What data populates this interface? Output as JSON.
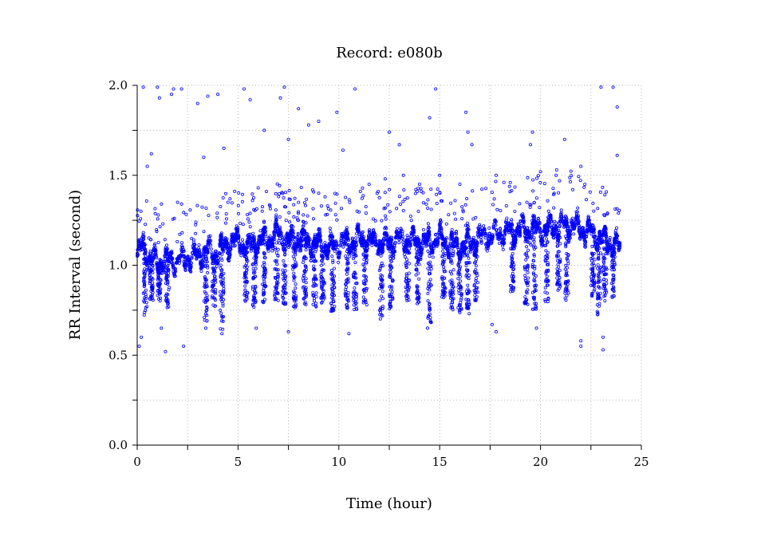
{
  "chart_data": {
    "type": "scatter",
    "title": "Record:  e080b",
    "xlabel": "Time (hour)",
    "ylabel": "RR Interval (second)",
    "xlim": [
      0,
      25
    ],
    "ylim": [
      0.0,
      2.0
    ],
    "x_ticks": [
      0,
      5,
      10,
      15,
      20,
      25
    ],
    "x_tick_labels": [
      "0",
      "5",
      "10",
      "15",
      "20",
      "25"
    ],
    "y_ticks": [
      0.0,
      0.5,
      1.0,
      1.5,
      2.0
    ],
    "y_tick_labels": [
      "0.0",
      "0.5",
      "1.0",
      "1.5",
      "2.0"
    ],
    "grid": true,
    "series": [
      {
        "color": "#0000ff",
        "marker": "open-circle",
        "baseline": [
          [
            0.0,
            1.05
          ],
          [
            0.3,
            1.12
          ],
          [
            0.6,
            1.03
          ],
          [
            1.0,
            1.02
          ],
          [
            1.5,
            1.03
          ],
          [
            2.0,
            1.02
          ],
          [
            2.5,
            1.04
          ],
          [
            3.0,
            1.05
          ],
          [
            3.5,
            1.08
          ],
          [
            4.0,
            1.06
          ],
          [
            4.5,
            1.12
          ],
          [
            5.0,
            1.13
          ],
          [
            5.5,
            1.1
          ],
          [
            6.0,
            1.13
          ],
          [
            6.5,
            1.15
          ],
          [
            7.0,
            1.17
          ],
          [
            7.5,
            1.13
          ],
          [
            8.0,
            1.15
          ],
          [
            8.5,
            1.13
          ],
          [
            9.0,
            1.12
          ],
          [
            9.5,
            1.1
          ],
          [
            10.0,
            1.12
          ],
          [
            10.5,
            1.13
          ],
          [
            11.0,
            1.14
          ],
          [
            11.5,
            1.13
          ],
          [
            12.0,
            1.12
          ],
          [
            12.5,
            1.13
          ],
          [
            13.0,
            1.14
          ],
          [
            13.5,
            1.14
          ],
          [
            14.0,
            1.13
          ],
          [
            14.5,
            1.13
          ],
          [
            15.0,
            1.15
          ],
          [
            15.5,
            1.12
          ],
          [
            16.0,
            1.1
          ],
          [
            16.5,
            1.12
          ],
          [
            17.0,
            1.15
          ],
          [
            17.5,
            1.17
          ],
          [
            18.0,
            1.18
          ],
          [
            18.5,
            1.19
          ],
          [
            19.0,
            1.2
          ],
          [
            19.5,
            1.2
          ],
          [
            20.0,
            1.2
          ],
          [
            20.5,
            1.21
          ],
          [
            21.0,
            1.22
          ],
          [
            21.5,
            1.23
          ],
          [
            22.0,
            1.2
          ],
          [
            22.5,
            1.18
          ],
          [
            23.0,
            1.15
          ],
          [
            23.5,
            1.12
          ],
          [
            23.9,
            1.1
          ]
        ],
        "dips": [
          [
            0.4,
            0.72
          ],
          [
            0.7,
            0.8
          ],
          [
            1.1,
            0.8
          ],
          [
            1.5,
            0.76
          ],
          [
            3.4,
            0.68
          ],
          [
            3.8,
            0.77
          ],
          [
            4.2,
            0.63
          ],
          [
            5.4,
            0.8
          ],
          [
            5.8,
            0.75
          ],
          [
            6.3,
            0.78
          ],
          [
            6.9,
            0.8
          ],
          [
            7.3,
            0.78
          ],
          [
            7.8,
            0.76
          ],
          [
            8.3,
            0.78
          ],
          [
            8.8,
            0.76
          ],
          [
            9.2,
            0.79
          ],
          [
            9.7,
            0.74
          ],
          [
            10.4,
            0.76
          ],
          [
            10.8,
            0.75
          ],
          [
            11.3,
            0.78
          ],
          [
            12.1,
            0.7
          ],
          [
            12.6,
            0.75
          ],
          [
            13.4,
            0.8
          ],
          [
            13.9,
            0.78
          ],
          [
            14.5,
            0.68
          ],
          [
            15.2,
            0.82
          ],
          [
            15.6,
            0.75
          ],
          [
            16.0,
            0.73
          ],
          [
            16.4,
            0.72
          ],
          [
            16.8,
            0.8
          ],
          [
            18.6,
            0.85
          ],
          [
            19.3,
            0.76
          ],
          [
            19.7,
            0.72
          ],
          [
            20.3,
            0.76
          ],
          [
            20.9,
            0.85
          ],
          [
            21.3,
            0.8
          ],
          [
            22.6,
            0.82
          ],
          [
            22.9,
            0.72
          ],
          [
            23.2,
            0.8
          ],
          [
            23.6,
            0.82
          ]
        ],
        "outliers": [
          [
            0.3,
            1.99
          ],
          [
            0.5,
            1.55
          ],
          [
            0.7,
            1.62
          ],
          [
            1.0,
            1.99
          ],
          [
            1.1,
            1.93
          ],
          [
            1.7,
            1.95
          ],
          [
            1.8,
            1.98
          ],
          [
            2.2,
            1.98
          ],
          [
            3.0,
            1.9
          ],
          [
            3.3,
            1.6
          ],
          [
            3.5,
            1.94
          ],
          [
            4.0,
            1.95
          ],
          [
            4.3,
            1.65
          ],
          [
            5.3,
            1.98
          ],
          [
            5.6,
            1.92
          ],
          [
            6.3,
            1.75
          ],
          [
            7.1,
            1.93
          ],
          [
            7.3,
            1.99
          ],
          [
            7.5,
            1.7
          ],
          [
            8.0,
            1.87
          ],
          [
            8.5,
            1.78
          ],
          [
            9.0,
            1.8
          ],
          [
            9.9,
            1.85
          ],
          [
            10.2,
            1.64
          ],
          [
            10.8,
            1.98
          ],
          [
            11.9,
            1.4
          ],
          [
            12.5,
            1.74
          ],
          [
            13.0,
            1.67
          ],
          [
            14.5,
            1.82
          ],
          [
            14.8,
            1.98
          ],
          [
            16.3,
            1.85
          ],
          [
            16.4,
            1.74
          ],
          [
            16.6,
            1.67
          ],
          [
            19.5,
            1.67
          ],
          [
            19.6,
            1.74
          ],
          [
            21.2,
            1.7
          ],
          [
            22.0,
            1.55
          ],
          [
            23.0,
            1.99
          ],
          [
            23.6,
            1.99
          ],
          [
            23.8,
            1.88
          ],
          [
            23.8,
            1.61
          ],
          [
            0.1,
            0.55
          ],
          [
            0.2,
            0.6
          ],
          [
            1.2,
            0.65
          ],
          [
            1.4,
            0.52
          ],
          [
            2.3,
            0.55
          ],
          [
            3.4,
            0.65
          ],
          [
            4.2,
            0.62
          ],
          [
            5.9,
            0.65
          ],
          [
            7.5,
            0.63
          ],
          [
            10.5,
            0.62
          ],
          [
            14.4,
            0.65
          ],
          [
            17.6,
            0.67
          ],
          [
            17.8,
            0.63
          ],
          [
            19.8,
            0.65
          ],
          [
            22.0,
            0.58
          ],
          [
            22.0,
            0.55
          ],
          [
            23.1,
            0.53
          ],
          [
            23.1,
            0.6
          ],
          [
            11.5,
            1.45
          ],
          [
            12.3,
            1.48
          ],
          [
            13.2,
            1.5
          ],
          [
            14.0,
            1.45
          ],
          [
            9.0,
            1.4
          ],
          [
            8.0,
            1.35
          ],
          [
            6.0,
            1.43
          ],
          [
            6.2,
            1.3
          ],
          [
            4.5,
            1.35
          ],
          [
            2.2,
            1.34
          ],
          [
            1.2,
            1.34
          ],
          [
            2.0,
            1.35
          ],
          [
            20.0,
            1.52
          ],
          [
            20.8,
            1.53
          ],
          [
            21.6,
            1.42
          ],
          [
            22.2,
            1.45
          ],
          [
            18.5,
            1.46
          ],
          [
            17.8,
            1.5
          ],
          [
            15.0,
            1.5
          ],
          [
            16.0,
            1.45
          ],
          [
            20.4,
            1.3
          ]
        ]
      }
    ]
  }
}
